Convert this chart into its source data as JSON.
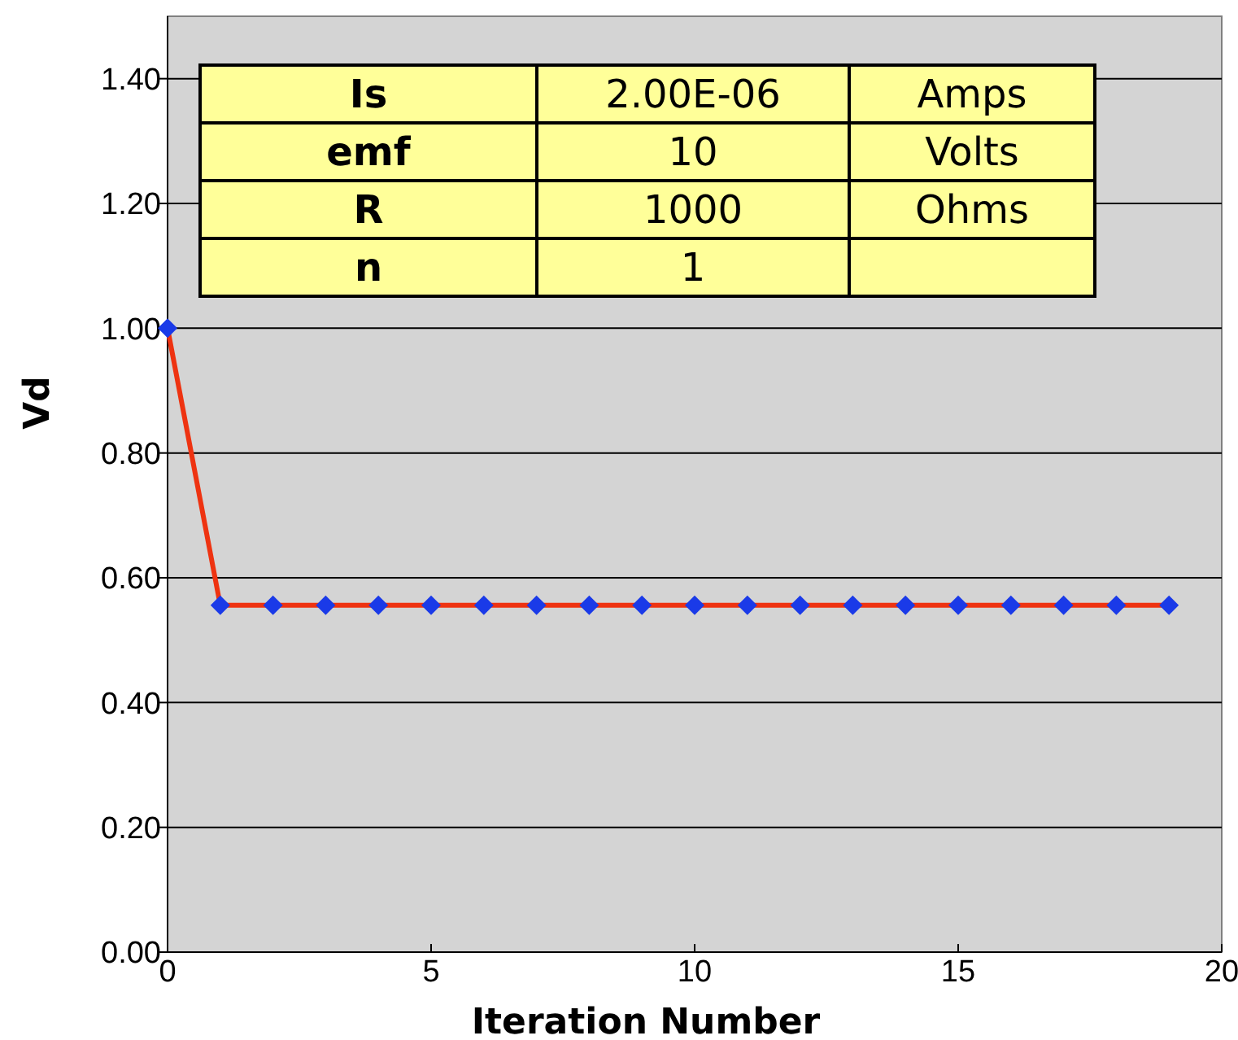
{
  "chart_data": {
    "type": "line",
    "xlabel": "Iteration Number",
    "ylabel": "Vd",
    "x": [
      0,
      1,
      2,
      3,
      4,
      5,
      6,
      7,
      8,
      9,
      10,
      11,
      12,
      13,
      14,
      15,
      16,
      17,
      18,
      19
    ],
    "series": [
      {
        "color": "#ee3311",
        "values": [
          1.0,
          0.556,
          0.556,
          0.556,
          0.556,
          0.556,
          0.556,
          0.556,
          0.556,
          0.556,
          0.556,
          0.556,
          0.556,
          0.556,
          0.556,
          0.556,
          0.556,
          0.556,
          0.556,
          0.556
        ]
      }
    ],
    "xlim": [
      0,
      20
    ],
    "xticks": [
      0,
      5,
      10,
      15,
      20
    ],
    "ylim": [
      0,
      1.5
    ],
    "yticks": [
      {
        "value": 0,
        "label": "0.00"
      },
      {
        "value": 0.2,
        "label": "0.20"
      },
      {
        "value": 0.4,
        "label": "0.40"
      },
      {
        "value": 0.6,
        "label": "0.60"
      },
      {
        "value": 0.8,
        "label": "0.80"
      },
      {
        "value": 1,
        "label": "1.00"
      },
      {
        "value": 1.2,
        "label": "1.20"
      },
      {
        "value": 1.4,
        "label": "1.40"
      }
    ],
    "grid": "y",
    "marker": "diamond",
    "line_style": "solid",
    "annotations": [
      "Is",
      "2.00E-06",
      "Amps",
      "emf",
      "10",
      "Volts",
      "R",
      "1000",
      "Ohms",
      "n",
      "1"
    ]
  }
}
